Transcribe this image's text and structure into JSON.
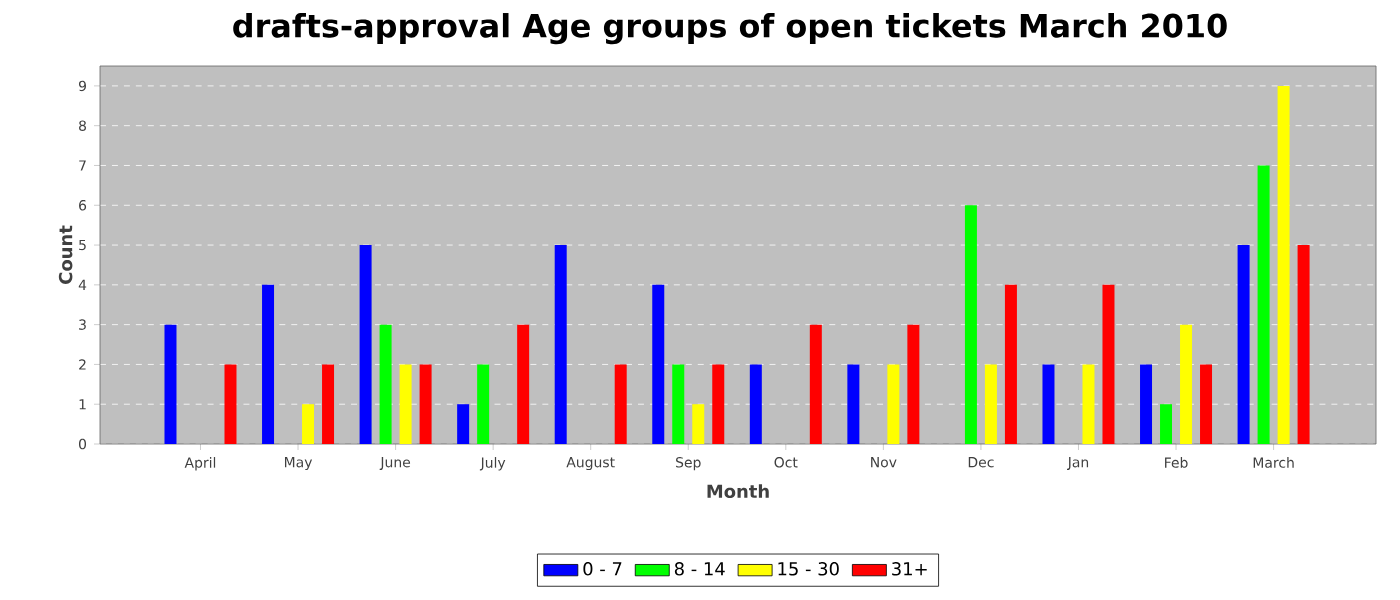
{
  "chart_data": {
    "type": "bar",
    "title": "drafts-approval Age groups of open tickets March 2010",
    "xlabel": "Month",
    "ylabel": "Count",
    "categories": [
      "April",
      "May",
      "June",
      "July",
      "August",
      "Sep",
      "Oct",
      "Nov",
      "Dec",
      "Jan",
      "Feb",
      "March"
    ],
    "series": [
      {
        "name": "0 - 7",
        "color": "#0000ff",
        "values": [
          3,
          4,
          5,
          1,
          5,
          4,
          2,
          2,
          0,
          2,
          2,
          5
        ]
      },
      {
        "name": "8 - 14",
        "color": "#00ff00",
        "values": [
          0,
          0,
          3,
          2,
          0,
          2,
          0,
          0,
          6,
          0,
          1,
          7
        ]
      },
      {
        "name": "15 - 30",
        "color": "#ffff00",
        "values": [
          0,
          1,
          2,
          0,
          0,
          1,
          0,
          2,
          2,
          2,
          3,
          9
        ]
      },
      {
        "name": "31+",
        "color": "#ff0000",
        "values": [
          2,
          2,
          2,
          3,
          2,
          2,
          3,
          3,
          4,
          4,
          2,
          5
        ]
      }
    ],
    "ylim": [
      0,
      9.5
    ],
    "yticks": [
      0,
      1,
      2,
      3,
      4,
      5,
      6,
      7,
      8,
      9
    ],
    "grid": "y",
    "legend": "bottom"
  }
}
